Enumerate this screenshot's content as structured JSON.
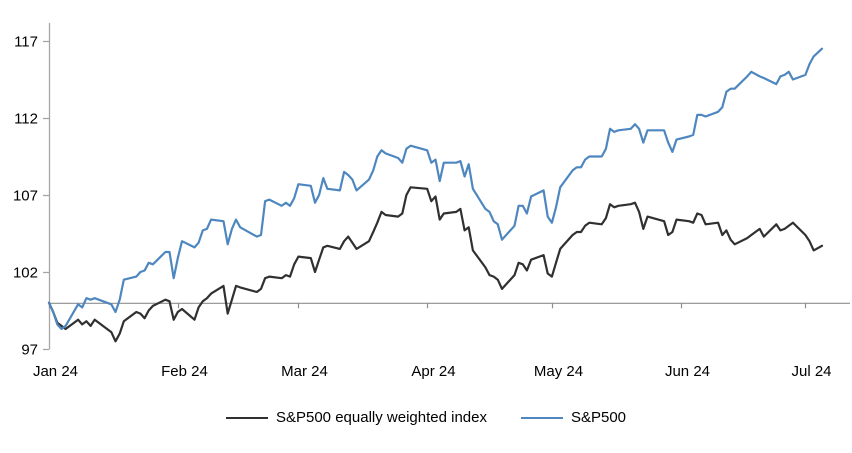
{
  "chart_data": {
    "type": "line",
    "title": "",
    "x_axis": {
      "tick_labels": [
        "Jan 24",
        "Feb 24",
        "Mar 24",
        "Apr 24",
        "May 24",
        "Jun 24",
        "Jul 24"
      ],
      "tick_day_offsets": [
        0,
        31,
        60,
        91,
        121,
        152,
        182
      ],
      "total_days": 186,
      "baseline_value": 100
    },
    "y_axis": {
      "tick_values": [
        97,
        102,
        107,
        112,
        117
      ],
      "min": 97,
      "max": 117
    },
    "colors": {
      "axis": "#a6a6a6",
      "baseline": "#8f8f8f",
      "text": "#000000"
    },
    "dates": [
      "01-01",
      "01-02",
      "01-03",
      "01-04",
      "01-05",
      "01-08",
      "01-09",
      "01-10",
      "01-11",
      "01-12",
      "01-16",
      "01-17",
      "01-18",
      "01-19",
      "01-22",
      "01-23",
      "01-24",
      "01-25",
      "01-26",
      "01-29",
      "01-30",
      "01-31",
      "02-01",
      "02-02",
      "02-05",
      "02-06",
      "02-07",
      "02-08",
      "02-09",
      "02-12",
      "02-13",
      "02-14",
      "02-15",
      "02-16",
      "02-20",
      "02-21",
      "02-22",
      "02-23",
      "02-26",
      "02-27",
      "02-28",
      "02-29",
      "03-01",
      "03-04",
      "03-05",
      "03-06",
      "03-07",
      "03-08",
      "03-11",
      "03-12",
      "03-13",
      "03-14",
      "03-15",
      "03-18",
      "03-19",
      "03-20",
      "03-21",
      "03-22",
      "03-25",
      "03-26",
      "03-27",
      "03-28",
      "04-01",
      "04-02",
      "04-03",
      "04-04",
      "04-05",
      "04-08",
      "04-09",
      "04-10",
      "04-11",
      "04-12",
      "04-15",
      "04-16",
      "04-17",
      "04-18",
      "04-19",
      "04-22",
      "04-23",
      "04-24",
      "04-25",
      "04-26",
      "04-29",
      "04-30",
      "05-01",
      "05-02",
      "05-03",
      "05-06",
      "05-07",
      "05-08",
      "05-09",
      "05-10",
      "05-13",
      "05-14",
      "05-15",
      "05-16",
      "05-17",
      "05-20",
      "05-21",
      "05-22",
      "05-23",
      "05-24",
      "05-28",
      "05-29",
      "05-30",
      "05-31",
      "06-03",
      "06-04",
      "06-05",
      "06-06",
      "06-07",
      "06-10",
      "06-11",
      "06-12",
      "06-13",
      "06-14",
      "06-17",
      "06-18",
      "06-20",
      "06-21",
      "06-24",
      "06-25",
      "06-26",
      "06-27",
      "06-28",
      "07-01",
      "07-02",
      "07-03",
      "07-05"
    ],
    "series": [
      {
        "name": "S&P500 equally weighted index",
        "color": "#303030",
        "values": [
          100.0,
          99.4,
          98.7,
          98.5,
          98.3,
          98.9,
          98.6,
          98.8,
          98.5,
          98.9,
          98.1,
          97.5,
          98.0,
          98.8,
          99.4,
          99.3,
          99.0,
          99.5,
          99.8,
          100.2,
          100.1,
          98.9,
          99.4,
          99.6,
          98.9,
          99.7,
          100.1,
          100.3,
          100.6,
          101.1,
          99.3,
          100.2,
          101.1,
          101.0,
          100.7,
          100.9,
          101.6,
          101.7,
          101.6,
          101.8,
          101.7,
          102.5,
          103.0,
          102.9,
          102.0,
          102.8,
          103.6,
          103.7,
          103.5,
          104.0,
          104.3,
          103.9,
          103.5,
          104.0,
          104.6,
          105.2,
          105.9,
          105.7,
          105.6,
          105.8,
          107.0,
          107.5,
          107.4,
          106.6,
          106.9,
          105.4,
          105.8,
          105.9,
          106.1,
          104.7,
          104.9,
          103.4,
          102.3,
          101.8,
          101.7,
          101.5,
          100.9,
          101.8,
          102.6,
          102.5,
          102.1,
          102.8,
          103.1,
          101.9,
          101.7,
          102.6,
          103.5,
          104.4,
          104.6,
          104.6,
          105.0,
          105.2,
          105.1,
          105.5,
          106.4,
          106.2,
          106.3,
          106.4,
          106.5,
          105.9,
          104.8,
          105.6,
          105.3,
          104.4,
          104.6,
          105.4,
          105.3,
          105.2,
          105.8,
          105.7,
          105.1,
          105.2,
          104.4,
          104.7,
          104.1,
          103.8,
          104.2,
          104.4,
          104.8,
          104.3,
          105.1,
          104.7,
          104.8,
          105.0,
          105.2,
          104.4,
          104.0,
          103.4,
          103.7
        ]
      },
      {
        "name": "S&P500",
        "color": "#4e87c0",
        "values": [
          100.0,
          99.4,
          98.6,
          98.3,
          98.5,
          99.9,
          99.7,
          100.3,
          100.2,
          100.3,
          99.9,
          99.4,
          100.2,
          101.5,
          101.7,
          102.0,
          102.1,
          102.6,
          102.5,
          103.3,
          103.3,
          101.6,
          102.9,
          104.0,
          103.6,
          103.9,
          104.7,
          104.8,
          105.4,
          105.3,
          103.8,
          104.8,
          105.4,
          104.9,
          104.3,
          104.4,
          106.6,
          106.7,
          106.3,
          106.5,
          106.3,
          106.8,
          107.7,
          107.6,
          106.5,
          107.0,
          108.1,
          107.4,
          107.3,
          108.5,
          108.3,
          108.0,
          107.3,
          108.0,
          108.6,
          109.5,
          109.9,
          109.7,
          109.4,
          109.1,
          110.0,
          110.2,
          109.9,
          109.1,
          109.3,
          107.9,
          109.1,
          109.1,
          109.2,
          108.2,
          109.0,
          107.4,
          106.1,
          105.9,
          105.3,
          105.1,
          104.1,
          105.0,
          106.3,
          106.3,
          105.8,
          106.9,
          107.3,
          105.6,
          105.2,
          106.2,
          107.5,
          108.6,
          108.8,
          108.8,
          109.3,
          109.5,
          109.5,
          110.0,
          111.3,
          111.1,
          111.2,
          111.3,
          111.6,
          111.3,
          110.4,
          111.2,
          111.2,
          110.4,
          109.8,
          110.6,
          110.8,
          110.9,
          112.2,
          112.2,
          112.1,
          112.4,
          112.7,
          113.7,
          113.9,
          113.9,
          114.7,
          115.0,
          114.7,
          114.6,
          114.2,
          114.7,
          114.8,
          115.0,
          114.5,
          114.8,
          115.5,
          116.0,
          116.5
        ]
      }
    ],
    "legend_position": "bottom"
  }
}
